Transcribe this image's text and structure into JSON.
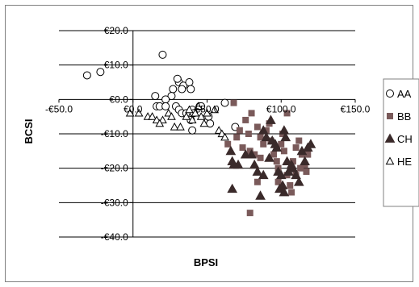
{
  "chart_data": {
    "type": "scatter",
    "xlabel": "BPSI",
    "ylabel": "BCSI",
    "xlim": [
      -50,
      150
    ],
    "ylim": [
      -40,
      20
    ],
    "x_ticks": [
      -50,
      0,
      50,
      100,
      150
    ],
    "y_ticks": [
      20,
      10,
      0,
      -10,
      -20,
      -30,
      -40
    ],
    "x_tick_labels": [
      "-€50.0",
      "€0.0",
      "€50.0",
      "€100.0",
      "€150.0"
    ],
    "y_tick_labels": [
      "€20.0",
      "€10.0",
      "€0.0",
      "-€10.0",
      "-€20.0",
      "-€30.0",
      "-€40.0"
    ],
    "grid": "horizontal",
    "legend_position": "right",
    "series": [
      {
        "name": "AA",
        "marker": "circle-open",
        "color": "#000000",
        "points": [
          [
            -31,
            7
          ],
          [
            -22,
            8
          ],
          [
            20,
            13
          ],
          [
            31,
            5
          ],
          [
            34,
            4
          ],
          [
            30,
            6
          ],
          [
            38,
            5
          ],
          [
            39,
            3
          ],
          [
            27,
            3
          ],
          [
            33,
            3
          ],
          [
            26,
            1
          ],
          [
            22,
            0
          ],
          [
            15,
            1
          ],
          [
            16,
            -2
          ],
          [
            18,
            -2
          ],
          [
            22,
            -2
          ],
          [
            29,
            -2
          ],
          [
            31,
            -3
          ],
          [
            33,
            -4
          ],
          [
            36,
            -4
          ],
          [
            40,
            -3
          ],
          [
            41,
            -4
          ],
          [
            45,
            -2
          ],
          [
            46,
            -2
          ],
          [
            39,
            -6
          ],
          [
            40,
            -9
          ],
          [
            51,
            -5
          ],
          [
            52,
            -7
          ],
          [
            69,
            -8
          ],
          [
            62,
            -1
          ]
        ]
      },
      {
        "name": "BB",
        "marker": "square",
        "color": "#7a5a5a",
        "points": [
          [
            64,
            -13
          ],
          [
            68,
            -1
          ],
          [
            70,
            -11
          ],
          [
            72,
            -9
          ],
          [
            74,
            -14
          ],
          [
            76,
            -6
          ],
          [
            78,
            -10
          ],
          [
            80,
            -4
          ],
          [
            79,
            -15
          ],
          [
            82,
            -16
          ],
          [
            84,
            -8
          ],
          [
            86,
            -11
          ],
          [
            88,
            -13
          ],
          [
            90,
            -9
          ],
          [
            92,
            -7
          ],
          [
            93,
            -12
          ],
          [
            95,
            -16
          ],
          [
            97,
            -18
          ],
          [
            98,
            -20
          ],
          [
            100,
            -13
          ],
          [
            101,
            -10
          ],
          [
            102,
            -15
          ],
          [
            104,
            -22
          ],
          [
            106,
            -25
          ],
          [
            107,
            -27
          ],
          [
            108,
            -18
          ],
          [
            110,
            -14
          ],
          [
            112,
            -12
          ],
          [
            113,
            -20
          ],
          [
            114,
            -16
          ],
          [
            116,
            -19
          ],
          [
            117,
            -21
          ],
          [
            118,
            -16
          ],
          [
            84,
            -24
          ],
          [
            79,
            -33
          ],
          [
            104,
            -4
          ],
          [
            86,
            -17
          ],
          [
            98,
            -24
          ],
          [
            110,
            -22
          ]
        ]
      },
      {
        "name": "CH",
        "marker": "triangle",
        "color": "#3a2a2a",
        "points": [
          [
            66,
            -15
          ],
          [
            67,
            -18
          ],
          [
            68,
            -19
          ],
          [
            71,
            -19
          ],
          [
            67,
            -26
          ],
          [
            76,
            -16
          ],
          [
            80,
            -16
          ],
          [
            82,
            -19
          ],
          [
            84,
            -21
          ],
          [
            86,
            -28
          ],
          [
            88,
            -22
          ],
          [
            90,
            -11
          ],
          [
            92,
            -17
          ],
          [
            94,
            -12
          ],
          [
            96,
            -13
          ],
          [
            97,
            -14
          ],
          [
            98,
            -21
          ],
          [
            100,
            -22
          ],
          [
            101,
            -25
          ],
          [
            102,
            -9
          ],
          [
            103,
            -11
          ],
          [
            104,
            -18
          ],
          [
            105,
            -21
          ],
          [
            107,
            -19
          ],
          [
            108,
            -20
          ],
          [
            110,
            -22
          ],
          [
            112,
            -24
          ],
          [
            114,
            -15
          ],
          [
            116,
            -18
          ],
          [
            118,
            -14
          ],
          [
            120,
            -13
          ],
          [
            88,
            -9
          ],
          [
            93,
            -6
          ],
          [
            99,
            -26
          ],
          [
            102,
            -27
          ]
        ]
      },
      {
        "name": "HE",
        "marker": "triangle-open",
        "color": "#000000",
        "points": [
          [
            -2,
            -4
          ],
          [
            4,
            -4
          ],
          [
            10,
            -5
          ],
          [
            13,
            -5
          ],
          [
            16,
            -6
          ],
          [
            20,
            -6
          ],
          [
            18,
            -7
          ],
          [
            24,
            -4
          ],
          [
            26,
            -5
          ],
          [
            28,
            -8
          ],
          [
            32,
            -8
          ],
          [
            36,
            -5
          ],
          [
            38,
            -3
          ],
          [
            40,
            -6
          ],
          [
            42,
            -4
          ],
          [
            44,
            -2
          ],
          [
            46,
            -5
          ],
          [
            48,
            -7
          ],
          [
            50,
            -4
          ],
          [
            55,
            -3
          ],
          [
            58,
            -9
          ],
          [
            60,
            -10
          ],
          [
            62,
            -11
          ]
        ]
      }
    ]
  }
}
